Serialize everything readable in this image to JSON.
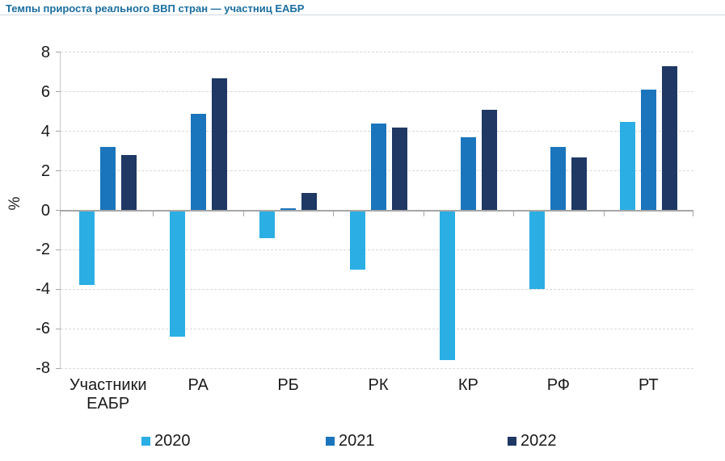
{
  "title": "Темпы прироста реального ВВП стран — участниц ЕАБР",
  "chart_data": {
    "type": "bar",
    "title": "Темпы прироста реального ВВП стран — участниц ЕАБР",
    "xlabel": "",
    "ylabel": "%",
    "ylim": [
      -8,
      8
    ],
    "ytick_step": 2,
    "yticks": [
      8,
      6,
      4,
      2,
      0,
      -2,
      -4,
      -6,
      -8
    ],
    "grid": "horizontal-dashed",
    "legend_position": "bottom",
    "categories": [
      "Участники ЕАБР",
      "РА",
      "РБ",
      "РК",
      "КР",
      "РФ",
      "РТ"
    ],
    "series": [
      {
        "name": "2020",
        "color": "#2aaee4",
        "values": [
          -3.8,
          -6.4,
          -1.4,
          -3.0,
          -7.6,
          -4.0,
          4.5
        ]
      },
      {
        "name": "2021",
        "color": "#1b75bc",
        "values": [
          3.2,
          4.9,
          0.1,
          4.4,
          3.7,
          3.2,
          6.1
        ]
      },
      {
        "name": "2022",
        "color": "#1f3864",
        "values": [
          2.8,
          6.7,
          0.9,
          4.2,
          5.1,
          2.7,
          7.3
        ]
      }
    ]
  },
  "colors": {
    "title_text": "#1a6e9f",
    "axis_line": "#a6a6a6",
    "gridline": "#d9d9d9",
    "label_text": "#1a1a1a",
    "background": "#ffffff"
  }
}
